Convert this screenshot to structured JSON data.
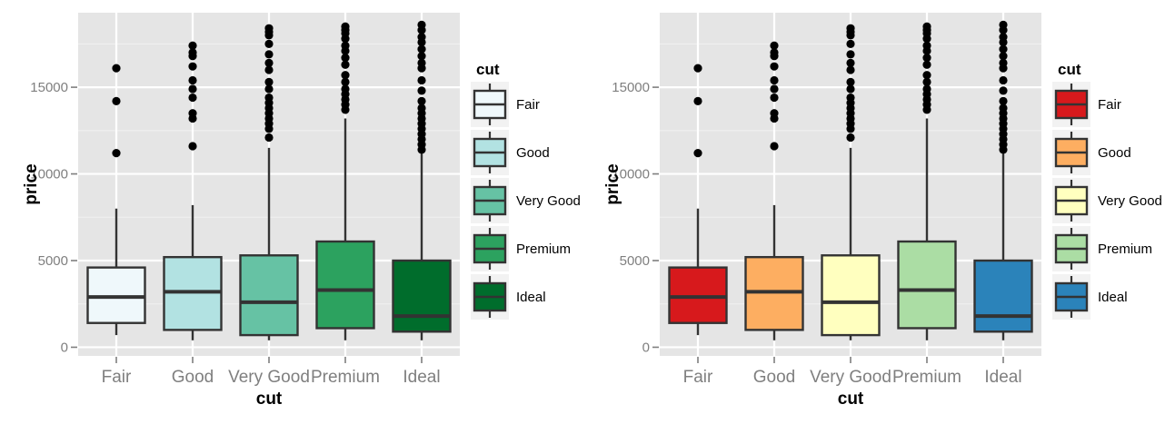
{
  "chart_data": [
    {
      "type": "boxplot",
      "xlabel": "cut",
      "ylabel": "price",
      "ylim": [
        -500,
        19300
      ],
      "yticks": [
        0,
        5000,
        10000,
        15000
      ],
      "grid": true,
      "legend": {
        "title": "cut",
        "placement": "right"
      },
      "categories": [
        "Fair",
        "Good",
        "Very Good",
        "Premium",
        "Ideal"
      ],
      "boxes": [
        {
          "cat": "Fair",
          "min": 700,
          "q1": 1400,
          "median": 2900,
          "q3": 4600,
          "max": 8000,
          "outliers": [
            11200,
            14200,
            16100
          ],
          "color": "#eff8fb"
        },
        {
          "cat": "Good",
          "min": 400,
          "q1": 1000,
          "median": 3200,
          "q3": 5200,
          "max": 8200,
          "outliers": [
            11600,
            13200,
            13500,
            14400,
            14900,
            15400,
            16200,
            16800,
            17000,
            17400
          ],
          "color": "#b2e2e2"
        },
        {
          "cat": "Very Good",
          "min": 400,
          "q1": 700,
          "median": 2600,
          "q3": 5300,
          "max": 11500,
          "outliers": [
            12100,
            12600,
            12900,
            13200,
            13500,
            13800,
            14100,
            14400,
            14900,
            15300,
            16000,
            16400,
            16900,
            17500,
            18000,
            18200,
            18400
          ],
          "color": "#66c2a4"
        },
        {
          "cat": "Premium",
          "min": 400,
          "q1": 1100,
          "median": 3300,
          "q3": 6100,
          "max": 13200,
          "outliers": [
            13700,
            14000,
            14300,
            14600,
            14900,
            15300,
            15700,
            16300,
            16700,
            17100,
            17400,
            17800,
            18100,
            18300,
            18500
          ],
          "color": "#2ca25f"
        },
        {
          "cat": "Ideal",
          "min": 400,
          "q1": 900,
          "median": 1800,
          "q3": 5000,
          "max": 11200,
          "outliers": [
            11400,
            11700,
            12000,
            12300,
            12600,
            12900,
            13200,
            13500,
            13800,
            14200,
            14800,
            15400,
            16100,
            16400,
            16800,
            17200,
            17600,
            17900,
            18300,
            18600
          ],
          "color": "#006d2c"
        }
      ]
    },
    {
      "type": "boxplot",
      "xlabel": "cut",
      "ylabel": "price",
      "ylim": [
        -500,
        19300
      ],
      "yticks": [
        0,
        5000,
        10000,
        15000
      ],
      "grid": true,
      "legend": {
        "title": "cut",
        "placement": "right"
      },
      "categories": [
        "Fair",
        "Good",
        "Very Good",
        "Premium",
        "Ideal"
      ],
      "boxes": [
        {
          "cat": "Fair",
          "min": 700,
          "q1": 1400,
          "median": 2900,
          "q3": 4600,
          "max": 8000,
          "outliers": [
            11200,
            14200,
            16100
          ],
          "color": "#d7191c"
        },
        {
          "cat": "Good",
          "min": 400,
          "q1": 1000,
          "median": 3200,
          "q3": 5200,
          "max": 8200,
          "outliers": [
            11600,
            13200,
            13500,
            14400,
            14900,
            15400,
            16200,
            16800,
            17000,
            17400
          ],
          "color": "#fdae61"
        },
        {
          "cat": "Very Good",
          "min": 400,
          "q1": 700,
          "median": 2600,
          "q3": 5300,
          "max": 11500,
          "outliers": [
            12100,
            12600,
            12900,
            13200,
            13500,
            13800,
            14100,
            14400,
            14900,
            15300,
            16000,
            16400,
            16900,
            17500,
            18000,
            18200,
            18400
          ],
          "color": "#ffffbf"
        },
        {
          "cat": "Premium",
          "min": 400,
          "q1": 1100,
          "median": 3300,
          "q3": 6100,
          "max": 13200,
          "outliers": [
            13700,
            14000,
            14300,
            14600,
            14900,
            15300,
            15700,
            16300,
            16700,
            17100,
            17400,
            17800,
            18100,
            18300,
            18500
          ],
          "color": "#abdda4"
        },
        {
          "cat": "Ideal",
          "min": 400,
          "q1": 900,
          "median": 1800,
          "q3": 5000,
          "max": 11200,
          "outliers": [
            11400,
            11700,
            12000,
            12300,
            12600,
            12900,
            13200,
            13500,
            13800,
            14200,
            14800,
            15400,
            16100,
            16400,
            16800,
            17200,
            17600,
            17900,
            18300,
            18600
          ],
          "color": "#2b83ba"
        }
      ]
    }
  ]
}
